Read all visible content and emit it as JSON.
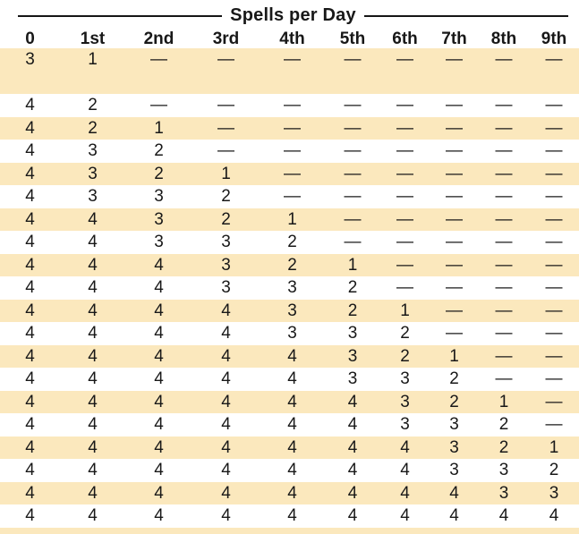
{
  "table": {
    "title": "Spells per Day",
    "columns": [
      "0",
      "1st",
      "2nd",
      "3rd",
      "4th",
      "5th",
      "6th",
      "7th",
      "8th",
      "9th"
    ],
    "rows": [
      {
        "shaded": true,
        "cells": [
          "3",
          "1",
          "—",
          "—",
          "—",
          "—",
          "—",
          "—",
          "—",
          "—"
        ]
      },
      {
        "shaded": true,
        "cells": [
          "",
          "",
          "",
          "",
          "",
          "",
          "",
          "",
          "",
          ""
        ]
      },
      {
        "shaded": false,
        "cells": [
          "4",
          "2",
          "—",
          "—",
          "—",
          "—",
          "—",
          "—",
          "—",
          "—"
        ]
      },
      {
        "shaded": true,
        "cells": [
          "4",
          "2",
          "1",
          "—",
          "—",
          "—",
          "—",
          "—",
          "—",
          "—"
        ]
      },
      {
        "shaded": false,
        "cells": [
          "4",
          "3",
          "2",
          "—",
          "—",
          "—",
          "—",
          "—",
          "—",
          "—"
        ]
      },
      {
        "shaded": true,
        "cells": [
          "4",
          "3",
          "2",
          "1",
          "—",
          "—",
          "—",
          "—",
          "—",
          "—"
        ]
      },
      {
        "shaded": false,
        "cells": [
          "4",
          "3",
          "3",
          "2",
          "—",
          "—",
          "—",
          "—",
          "—",
          "—"
        ]
      },
      {
        "shaded": true,
        "cells": [
          "4",
          "4",
          "3",
          "2",
          "1",
          "—",
          "—",
          "—",
          "—",
          "—"
        ]
      },
      {
        "shaded": false,
        "cells": [
          "4",
          "4",
          "3",
          "3",
          "2",
          "—",
          "—",
          "—",
          "—",
          "—"
        ]
      },
      {
        "shaded": true,
        "cells": [
          "4",
          "4",
          "4",
          "3",
          "2",
          "1",
          "—",
          "—",
          "—",
          "—"
        ]
      },
      {
        "shaded": false,
        "cells": [
          "4",
          "4",
          "4",
          "3",
          "3",
          "2",
          "—",
          "—",
          "—",
          "—"
        ]
      },
      {
        "shaded": true,
        "cells": [
          "4",
          "4",
          "4",
          "4",
          "3",
          "2",
          "1",
          "—",
          "—",
          "—"
        ]
      },
      {
        "shaded": false,
        "cells": [
          "4",
          "4",
          "4",
          "4",
          "3",
          "3",
          "2",
          "—",
          "—",
          "—"
        ]
      },
      {
        "shaded": true,
        "cells": [
          "4",
          "4",
          "4",
          "4",
          "4",
          "3",
          "2",
          "1",
          "—",
          "—"
        ]
      },
      {
        "shaded": false,
        "cells": [
          "4",
          "4",
          "4",
          "4",
          "4",
          "3",
          "3",
          "2",
          "—",
          "—"
        ]
      },
      {
        "shaded": true,
        "cells": [
          "4",
          "4",
          "4",
          "4",
          "4",
          "4",
          "3",
          "2",
          "1",
          "—"
        ]
      },
      {
        "shaded": false,
        "cells": [
          "4",
          "4",
          "4",
          "4",
          "4",
          "4",
          "3",
          "3",
          "2",
          "—"
        ]
      },
      {
        "shaded": true,
        "cells": [
          "4",
          "4",
          "4",
          "4",
          "4",
          "4",
          "4",
          "3",
          "2",
          "1"
        ]
      },
      {
        "shaded": false,
        "cells": [
          "4",
          "4",
          "4",
          "4",
          "4",
          "4",
          "4",
          "3",
          "3",
          "2"
        ]
      },
      {
        "shaded": true,
        "cells": [
          "4",
          "4",
          "4",
          "4",
          "4",
          "4",
          "4",
          "4",
          "3",
          "3"
        ]
      },
      {
        "shaded": false,
        "cells": [
          "4",
          "4",
          "4",
          "4",
          "4",
          "4",
          "4",
          "4",
          "4",
          "4"
        ]
      }
    ]
  },
  "colors": {
    "row_shading": "#FBE8BD",
    "text": "#181818",
    "rule": "#161616",
    "background": "#FFFFFF"
  }
}
